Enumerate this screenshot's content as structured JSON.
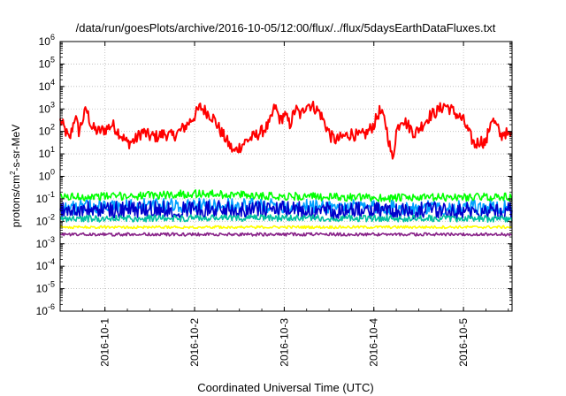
{
  "chart_data": {
    "type": "line",
    "title": "/data/run/goesPlots/archive/2016-10-05/12:00/flux/../flux/5daysEarthDataFluxes.txt",
    "xlabel": "Coordinated Universal Time (UTC)",
    "ylabel": "protons/cm2-s-sr-MeV",
    "ylabel_parts": {
      "before": "protons/cm",
      "sup": "2",
      "after": "-s-sr-MeV"
    },
    "yscale": "log",
    "ylim_exp": [
      -6,
      6
    ],
    "y_ticks": [
      {
        "base": "10",
        "exp": "6"
      },
      {
        "base": "10",
        "exp": "5"
      },
      {
        "base": "10",
        "exp": "4"
      },
      {
        "base": "10",
        "exp": "3"
      },
      {
        "base": "10",
        "exp": "2"
      },
      {
        "base": "10",
        "exp": "1"
      },
      {
        "base": "10",
        "exp": "0"
      },
      {
        "base": "10",
        "exp": "-1"
      },
      {
        "base": "10",
        "exp": "-2"
      },
      {
        "base": "10",
        "exp": "-3"
      },
      {
        "base": "10",
        "exp": "-4"
      },
      {
        "base": "10",
        "exp": "-5"
      },
      {
        "base": "10",
        "exp": "-6"
      }
    ],
    "xlim": [
      "2016-09-30T12:00",
      "2016-10-05T13:00"
    ],
    "x_ticks": [
      "2016-10-1",
      "2016-10-2",
      "2016-10-3",
      "2016-10-4",
      "2016-10-5"
    ],
    "x_tick_dates": [
      "2016-10-01T00:00",
      "2016-10-02T00:00",
      "2016-10-03T00:00",
      "2016-10-04T00:00",
      "2016-10-05T00:00"
    ],
    "grid": true,
    "series": [
      {
        "color": "#ff0000",
        "noise": 0.28,
        "points": [
          [
            "2016-09-30T12:00",
            300
          ],
          [
            "2016-09-30T13:00",
            150
          ],
          [
            "2016-09-30T14:30",
            40
          ],
          [
            "2016-09-30T16:00",
            500
          ],
          [
            "2016-09-30T17:00",
            100
          ],
          [
            "2016-09-30T19:00",
            1000
          ],
          [
            "2016-09-30T20:30",
            150
          ],
          [
            "2016-09-30T22:00",
            100
          ],
          [
            "2016-10-01T00:00",
            120
          ],
          [
            "2016-10-01T02:00",
            200
          ],
          [
            "2016-10-01T04:00",
            80
          ],
          [
            "2016-10-01T06:00",
            30
          ],
          [
            "2016-10-01T08:00",
            40
          ],
          [
            "2016-10-01T10:00",
            100
          ],
          [
            "2016-10-01T12:00",
            60
          ],
          [
            "2016-10-01T14:00",
            60
          ],
          [
            "2016-10-01T16:00",
            80
          ],
          [
            "2016-10-01T18:00",
            60
          ],
          [
            "2016-10-01T20:00",
            100
          ],
          [
            "2016-10-01T22:00",
            200
          ],
          [
            "2016-10-02T00:00",
            500
          ],
          [
            "2016-10-02T01:30",
            1200
          ],
          [
            "2016-10-02T03:00",
            800
          ],
          [
            "2016-10-02T05:00",
            400
          ],
          [
            "2016-10-02T07:00",
            100
          ],
          [
            "2016-10-02T09:00",
            30
          ],
          [
            "2016-10-02T10:30",
            12
          ],
          [
            "2016-10-02T12:00",
            20
          ],
          [
            "2016-10-02T14:00",
            40
          ],
          [
            "2016-10-02T16:00",
            60
          ],
          [
            "2016-10-02T18:00",
            100
          ],
          [
            "2016-10-02T20:00",
            200
          ],
          [
            "2016-10-02T21:30",
            1300
          ],
          [
            "2016-10-02T23:00",
            300
          ],
          [
            "2016-10-03T00:00",
            600
          ],
          [
            "2016-10-03T01:30",
            200
          ],
          [
            "2016-10-03T03:00",
            1000
          ],
          [
            "2016-10-03T04:30",
            500
          ],
          [
            "2016-10-03T06:00",
            1800
          ],
          [
            "2016-10-03T08:00",
            1200
          ],
          [
            "2016-10-03T09:30",
            700
          ],
          [
            "2016-10-03T11:00",
            200
          ],
          [
            "2016-10-03T12:30",
            60
          ],
          [
            "2016-10-03T14:00",
            40
          ],
          [
            "2016-10-03T16:00",
            60
          ],
          [
            "2016-10-03T18:00",
            80
          ],
          [
            "2016-10-03T20:00",
            60
          ],
          [
            "2016-10-03T22:00",
            80
          ],
          [
            "2016-10-04T00:00",
            200
          ],
          [
            "2016-10-04T01:30",
            800
          ],
          [
            "2016-10-04T03:00",
            300
          ],
          [
            "2016-10-04T04:00",
            40
          ],
          [
            "2016-10-04T05:00",
            5
          ],
          [
            "2016-10-04T06:00",
            100
          ],
          [
            "2016-10-04T07:30",
            400
          ],
          [
            "2016-10-04T09:00",
            200
          ],
          [
            "2016-10-04T11:00",
            80
          ],
          [
            "2016-10-04T13:00",
            200
          ],
          [
            "2016-10-04T15:00",
            500
          ],
          [
            "2016-10-04T17:00",
            800
          ],
          [
            "2016-10-04T19:00",
            1500
          ],
          [
            "2016-10-04T20:30",
            1000
          ],
          [
            "2016-10-04T22:00",
            600
          ],
          [
            "2016-10-05T00:00",
            300
          ],
          [
            "2016-10-05T01:30",
            80
          ],
          [
            "2016-10-05T03:00",
            25
          ],
          [
            "2016-10-05T04:30",
            40
          ],
          [
            "2016-10-05T06:00",
            30
          ],
          [
            "2016-10-05T07:30",
            400
          ],
          [
            "2016-10-05T09:00",
            150
          ],
          [
            "2016-10-05T10:00",
            60
          ],
          [
            "2016-10-05T11:00",
            100
          ],
          [
            "2016-10-05T12:00",
            60
          ],
          [
            "2016-10-05T13:00",
            70
          ]
        ]
      },
      {
        "color": "#00ff00",
        "noise": 0.18,
        "points": [
          [
            "2016-09-30T12:00",
            0.12
          ],
          [
            "2016-10-01T00:00",
            0.13
          ],
          [
            "2016-10-01T12:00",
            0.14
          ],
          [
            "2016-10-02T00:00",
            0.17
          ],
          [
            "2016-10-02T12:00",
            0.15
          ],
          [
            "2016-10-03T00:00",
            0.13
          ],
          [
            "2016-10-03T12:00",
            0.12
          ],
          [
            "2016-10-04T00:00",
            0.11
          ],
          [
            "2016-10-04T12:00",
            0.11
          ],
          [
            "2016-10-05T00:00",
            0.12
          ],
          [
            "2016-10-05T13:00",
            0.12
          ]
        ]
      },
      {
        "color": "#00a0ff",
        "noise": 0.32,
        "points": [
          [
            "2016-09-30T12:00",
            0.04
          ],
          [
            "2016-10-01T12:00",
            0.05
          ],
          [
            "2016-10-02T12:00",
            0.05
          ],
          [
            "2016-10-03T12:00",
            0.045
          ],
          [
            "2016-10-04T12:00",
            0.04
          ],
          [
            "2016-10-05T13:00",
            0.04
          ]
        ]
      },
      {
        "color": "#0000cc",
        "noise": 0.38,
        "points": [
          [
            "2016-09-30T12:00",
            0.03
          ],
          [
            "2016-10-01T12:00",
            0.035
          ],
          [
            "2016-10-02T12:00",
            0.035
          ],
          [
            "2016-10-03T12:00",
            0.03
          ],
          [
            "2016-10-04T12:00",
            0.03
          ],
          [
            "2016-10-05T13:00",
            0.03
          ]
        ]
      },
      {
        "color": "#00c0a0",
        "noise": 0.15,
        "points": [
          [
            "2016-09-30T12:00",
            0.013
          ],
          [
            "2016-10-02T12:00",
            0.014
          ],
          [
            "2016-10-05T13:00",
            0.013
          ]
        ]
      },
      {
        "color": "#ffff00",
        "noise": 0.06,
        "points": [
          [
            "2016-09-30T12:00",
            0.0055
          ],
          [
            "2016-10-05T13:00",
            0.0055
          ]
        ]
      },
      {
        "color": "#882288",
        "noise": 0.07,
        "points": [
          [
            "2016-09-30T12:00",
            0.0026
          ],
          [
            "2016-10-05T13:00",
            0.0026
          ]
        ]
      }
    ]
  }
}
